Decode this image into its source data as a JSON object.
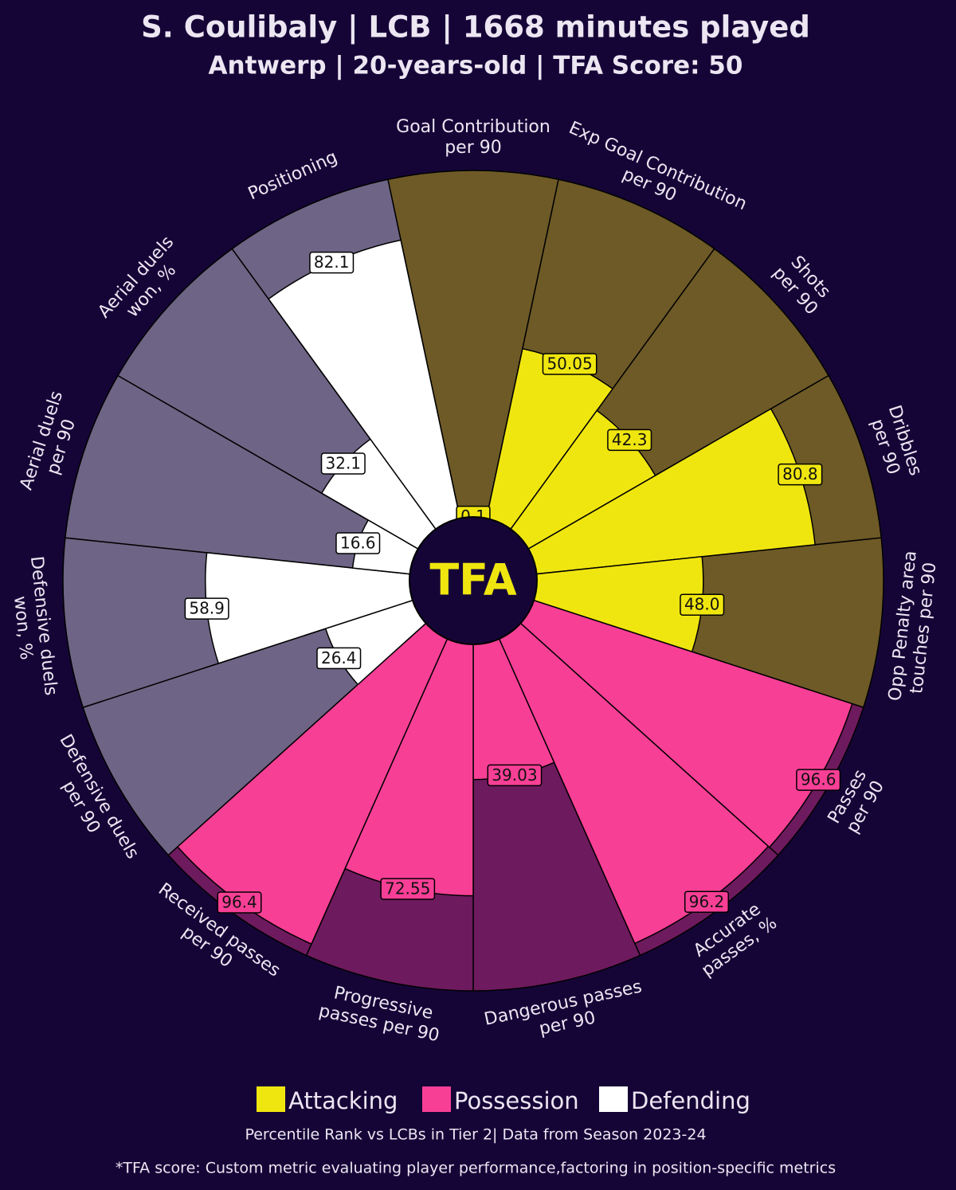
{
  "chart_data": {
    "type": "pizza",
    "title": "S. Coulibaly | LCB | 1668 minutes played",
    "subtitle": "Antwerp | 20-years-old | TFA Score: 50",
    "logo_text": "TFA",
    "ylim": [
      0,
      100
    ],
    "series": [
      {
        "name": "Attacking",
        "color": "#f0e60f",
        "background_color": "#6e5a27",
        "categories": [
          "Goal Contribution\nper 90",
          "Exp Goal Contribution\nper 90",
          "Shots\nper 90",
          "Dribbles\nper 90",
          "Opp Penalty area\ntouches per 90"
        ],
        "values": [
          0.1,
          50.05,
          42.3,
          80.8,
          48.0
        ],
        "value_labels": [
          "0.1",
          "50.05",
          "42.3",
          "80.8",
          "48.0"
        ]
      },
      {
        "name": "Possession",
        "color": "#f83f96",
        "background_color": "#6e1a5e",
        "categories": [
          "Passes\nper 90",
          "Accurate\npasses, %",
          "Dangerous passes\nper 90",
          "Progressive\npasses per 90",
          "Received passes\nper 90"
        ],
        "values": [
          96.6,
          96.2,
          39.03,
          72.55,
          96.4
        ],
        "value_labels": [
          "96.6",
          "96.2",
          "39.03",
          "72.55",
          "96.4"
        ]
      },
      {
        "name": "Defending",
        "color": "#ffffff",
        "background_color": "#6e6485",
        "categories": [
          "Defensive duels\nper 90",
          "Defensive duels\nwon, %",
          "Aerial duels\nper 90",
          "Aerial duels\nwon, %",
          "Positioning"
        ],
        "values": [
          26.4,
          58.9,
          16.6,
          32.1,
          82.1
        ],
        "value_labels": [
          "26.4",
          "58.9",
          "16.6",
          "32.1",
          "82.1"
        ]
      }
    ],
    "source": "Percentile Rank vs LCBs in Tier 2| Data from Season 2023-24",
    "note": "*TFA score: Custom metric evaluating player performance,factoring in position-specific metrics"
  }
}
